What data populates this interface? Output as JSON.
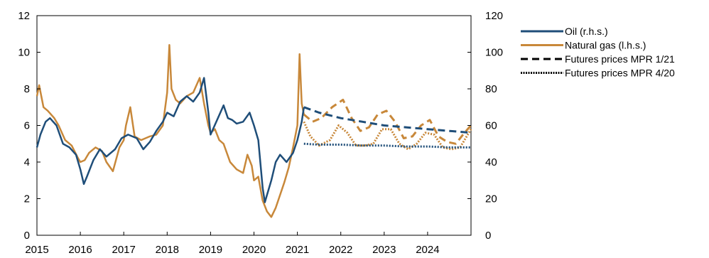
{
  "chart_data": {
    "type": "line",
    "x_unit": "year",
    "xlim": [
      2015,
      2025
    ],
    "x_ticks": [
      "2015",
      "2016",
      "2017",
      "2018",
      "2019",
      "2020",
      "2021",
      "2022",
      "2023",
      "2024"
    ],
    "y_left": {
      "lim": [
        0,
        12
      ],
      "ticks": [
        "0",
        "2",
        "4",
        "6",
        "8",
        "10",
        "12"
      ]
    },
    "y_right": {
      "lim": [
        0,
        120
      ],
      "ticks": [
        "0",
        "20",
        "40",
        "60",
        "80",
        "100",
        "120"
      ]
    },
    "grid": false,
    "legend_position": "right",
    "series": [
      {
        "name": "Oil (r.h.s.)",
        "axis": "right",
        "color": "#1f4e79",
        "style": "solid",
        "x": [
          2015.0,
          2015.08,
          2015.2,
          2015.3,
          2015.45,
          2015.6,
          2015.75,
          2015.9,
          2016.0,
          2016.08,
          2016.15,
          2016.3,
          2016.45,
          2016.6,
          2016.8,
          2016.95,
          2017.1,
          2017.3,
          2017.45,
          2017.6,
          2017.75,
          2017.9,
          2018.0,
          2018.15,
          2018.3,
          2018.45,
          2018.6,
          2018.75,
          2018.85,
          2018.95,
          2019.0,
          2019.15,
          2019.3,
          2019.4,
          2019.5,
          2019.6,
          2019.75,
          2019.9,
          2020.0,
          2020.1,
          2020.2,
          2020.25,
          2020.3,
          2020.4,
          2020.5,
          2020.6,
          2020.75,
          2020.9,
          2021.0,
          2021.1,
          2021.15
        ],
        "y": [
          48,
          55,
          62,
          64,
          60,
          50,
          48,
          44,
          36,
          28,
          32,
          41,
          47,
          43,
          47,
          53,
          55,
          53,
          47,
          51,
          57,
          62,
          67,
          65,
          73,
          76,
          73,
          78,
          86,
          67,
          55,
          63,
          71,
          64,
          63,
          61,
          62,
          67,
          60,
          52,
          26,
          18,
          22,
          30,
          40,
          44,
          40,
          45,
          52,
          62,
          70
        ]
      },
      {
        "name": "Natural gas (l.h.s.)",
        "axis": "left",
        "color": "#c8883a",
        "style": "solid",
        "x": [
          2015.0,
          2015.05,
          2015.15,
          2015.25,
          2015.4,
          2015.5,
          2015.65,
          2015.8,
          2015.95,
          2016.0,
          2016.1,
          2016.2,
          2016.35,
          2016.5,
          2016.6,
          2016.75,
          2016.9,
          2017.0,
          2017.05,
          2017.15,
          2017.25,
          2017.4,
          2017.5,
          2017.6,
          2017.75,
          2017.9,
          2018.0,
          2018.05,
          2018.1,
          2018.2,
          2018.3,
          2018.45,
          2018.6,
          2018.75,
          2018.85,
          2018.95,
          2019.0,
          2019.1,
          2019.2,
          2019.3,
          2019.45,
          2019.6,
          2019.75,
          2019.85,
          2019.95,
          2020.0,
          2020.1,
          2020.2,
          2020.3,
          2020.4,
          2020.5,
          2020.6,
          2020.7,
          2020.8,
          2020.9,
          2021.0,
          2021.05,
          2021.1,
          2021.15
        ],
        "y": [
          7.6,
          8.2,
          7.0,
          6.8,
          6.4,
          6.0,
          5.2,
          4.9,
          4.2,
          4.0,
          4.1,
          4.5,
          4.8,
          4.6,
          4.0,
          3.5,
          4.8,
          5.2,
          6.0,
          7.0,
          5.4,
          5.2,
          5.3,
          5.4,
          5.5,
          6.0,
          7.8,
          10.4,
          8.0,
          7.4,
          7.2,
          7.6,
          7.8,
          8.6,
          7.2,
          6.0,
          5.6,
          5.8,
          5.2,
          5.0,
          4.0,
          3.6,
          3.4,
          4.4,
          3.8,
          3.0,
          3.2,
          1.9,
          1.3,
          1.0,
          1.5,
          2.2,
          2.9,
          3.7,
          4.8,
          6.0,
          9.9,
          7.2,
          6.6
        ]
      },
      {
        "name": "Futures prices MPR 1/21",
        "axis": "right",
        "color": "#1f4e79",
        "style": "dashed",
        "x": [
          2021.15,
          2021.5,
          2022.0,
          2022.5,
          2023.0,
          2023.5,
          2024.0,
          2024.5,
          2025.0
        ],
        "y": [
          70,
          67,
          64,
          62,
          60,
          59,
          58,
          57,
          56
        ]
      },
      {
        "name": "Futures prices MPR 1/21",
        "axis": "left",
        "color": "#c8883a",
        "style": "dashed",
        "x": [
          2021.15,
          2021.35,
          2021.55,
          2021.8,
          2022.05,
          2022.25,
          2022.45,
          2022.65,
          2022.85,
          2023.05,
          2023.25,
          2023.45,
          2023.65,
          2023.85,
          2024.05,
          2024.25,
          2024.45,
          2024.65,
          2024.85,
          2025.0
        ],
        "y": [
          6.6,
          6.2,
          6.4,
          7.0,
          7.4,
          6.4,
          5.7,
          5.9,
          6.6,
          6.8,
          6.2,
          5.3,
          5.4,
          6.0,
          6.3,
          5.4,
          5.1,
          5.0,
          5.6,
          6.0
        ]
      },
      {
        "name": "Futures prices MPR 4/20",
        "axis": "right",
        "color": "#1f4e79",
        "style": "dotted",
        "x": [
          2021.15,
          2021.5,
          2022.0,
          2022.5,
          2023.0,
          2023.5,
          2024.0,
          2024.5,
          2025.0
        ],
        "y": [
          50,
          49.5,
          49.5,
          49,
          49,
          48.5,
          48.5,
          48,
          48
        ]
      },
      {
        "name": "Futures prices MPR 4/20",
        "axis": "left",
        "color": "#c8883a",
        "style": "dotted",
        "x": [
          2021.15,
          2021.3,
          2021.5,
          2021.75,
          2021.95,
          2022.15,
          2022.35,
          2022.55,
          2022.75,
          2022.95,
          2023.15,
          2023.35,
          2023.55,
          2023.75,
          2023.95,
          2024.15,
          2024.35,
          2024.55,
          2024.75,
          2024.9,
          2025.0
        ],
        "y": [
          6.2,
          5.4,
          4.9,
          5.2,
          6.0,
          5.6,
          4.9,
          4.9,
          5.0,
          5.8,
          5.8,
          5.0,
          4.7,
          5.0,
          5.6,
          5.5,
          4.8,
          4.7,
          4.8,
          5.4,
          5.8
        ]
      }
    ],
    "legend": [
      {
        "label": "Oil (r.h.s.)",
        "color": "#1f4e79",
        "style": "solid"
      },
      {
        "label": "Natural gas (l.h.s.)",
        "color": "#c8883a",
        "style": "solid"
      },
      {
        "label": "Futures prices MPR 1/21",
        "color": "#000000",
        "style": "dashed"
      },
      {
        "label": "Futures prices MPR 4/20",
        "color": "#000000",
        "style": "dotted"
      }
    ]
  }
}
